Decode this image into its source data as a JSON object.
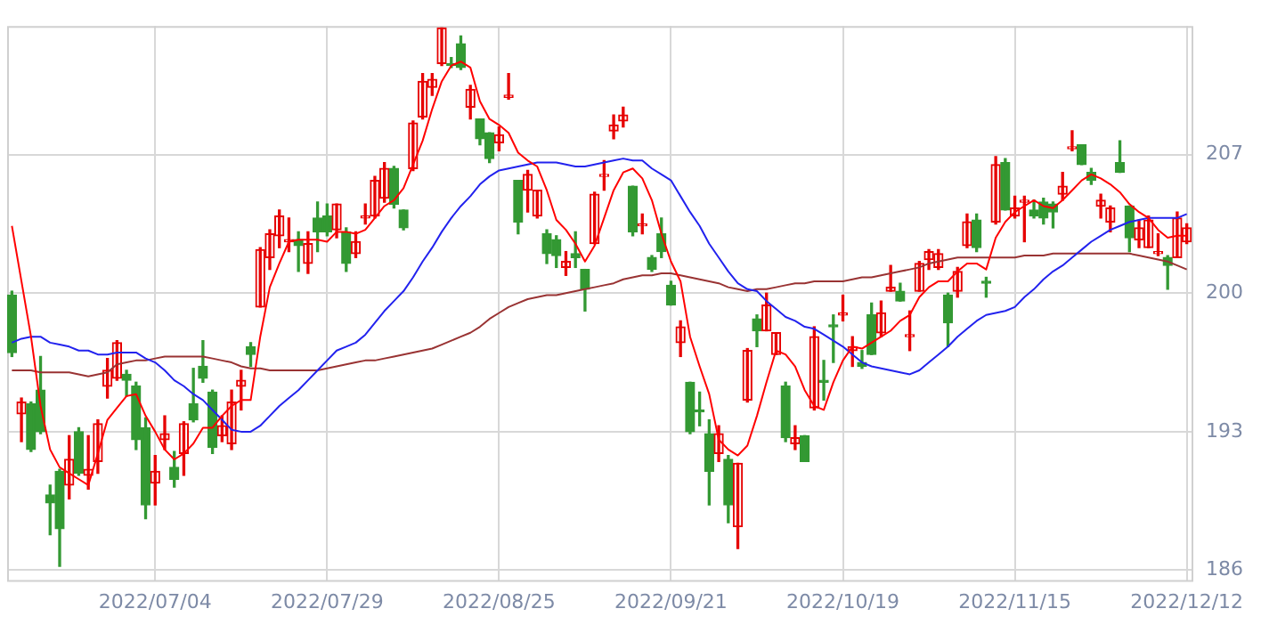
{
  "chart_data": {
    "type": "candlestick",
    "categories": [
      null,
      null,
      null,
      null,
      null,
      null,
      null,
      null,
      null,
      null,
      null,
      null,
      null,
      null,
      null,
      "2022/07/04",
      null,
      null,
      null,
      null,
      null,
      null,
      null,
      null,
      null,
      null,
      null,
      null,
      null,
      null,
      null,
      null,
      null,
      "2022/07/29",
      null,
      null,
      null,
      null,
      null,
      null,
      null,
      null,
      null,
      null,
      null,
      null,
      null,
      null,
      null,
      null,
      null,
      "2022/08/25",
      null,
      null,
      null,
      null,
      null,
      null,
      null,
      null,
      null,
      null,
      null,
      null,
      null,
      null,
      null,
      null,
      null,
      "2022/09/21",
      null,
      null,
      null,
      null,
      null,
      null,
      null,
      null,
      null,
      null,
      null,
      null,
      null,
      null,
      null,
      null,
      null,
      "2022/10/19",
      null,
      null,
      null,
      null,
      null,
      null,
      null,
      null,
      null,
      null,
      null,
      null,
      null,
      null,
      null,
      null,
      null,
      "2022/11/15",
      null,
      null,
      null,
      null,
      null,
      null,
      null,
      null,
      null,
      null,
      null,
      null,
      null,
      null,
      null,
      null,
      null,
      "2022/12/12"
    ],
    "ohlc": [
      [
        199.9,
        200.1,
        196.8,
        197.0
      ],
      [
        193.9,
        194.7,
        192.5,
        194.5
      ],
      [
        194.4,
        194.5,
        192.0,
        192.1
      ],
      [
        195.1,
        196.8,
        192.9,
        193.0
      ],
      [
        189.8,
        190.3,
        187.8,
        189.4
      ],
      [
        191.0,
        191.1,
        186.2,
        188.1
      ],
      [
        190.3,
        192.8,
        189.6,
        191.6
      ],
      [
        193.0,
        193.2,
        190.8,
        190.9
      ],
      [
        190.8,
        192.8,
        190.1,
        191.1
      ],
      [
        191.5,
        193.6,
        190.9,
        193.4
      ],
      [
        195.3,
        196.7,
        194.7,
        196.1
      ],
      [
        195.7,
        197.6,
        195.6,
        197.5
      ],
      [
        195.9,
        196.1,
        194.8,
        195.6
      ],
      [
        195.3,
        195.5,
        192.1,
        192.6
      ],
      [
        193.2,
        193.7,
        188.6,
        189.3
      ],
      [
        190.4,
        191.8,
        189.3,
        191.0
      ],
      [
        192.6,
        193.8,
        192.1,
        192.9
      ],
      [
        191.2,
        192.0,
        190.2,
        190.6
      ],
      [
        191.9,
        193.5,
        190.8,
        193.4
      ],
      [
        194.4,
        196.2,
        193.5,
        193.6
      ],
      [
        196.3,
        197.6,
        195.5,
        195.7
      ],
      [
        195.0,
        195.1,
        191.9,
        192.2
      ],
      [
        192.8,
        193.8,
        192.5,
        193.3
      ],
      [
        192.4,
        195.1,
        192.1,
        194.5
      ],
      [
        195.3,
        196.1,
        194.1,
        195.6
      ],
      [
        197.3,
        197.5,
        196.3,
        196.9
      ],
      [
        199.3,
        202.3,
        199.3,
        202.2
      ],
      [
        201.8,
        203.2,
        201.2,
        203.0
      ],
      [
        202.9,
        204.2,
        202.3,
        203.9
      ],
      [
        202.6,
        203.8,
        202.1,
        202.7
      ],
      [
        202.7,
        203.1,
        201.1,
        202.4
      ],
      [
        201.5,
        203.1,
        201.0,
        202.5
      ],
      [
        203.8,
        204.6,
        202.1,
        203.1
      ],
      [
        203.9,
        204.5,
        202.9,
        203.1
      ],
      [
        203.2,
        204.5,
        202.8,
        204.5
      ],
      [
        203.1,
        203.3,
        201.1,
        201.5
      ],
      [
        202.0,
        203.1,
        201.8,
        202.6
      ],
      [
        203.8,
        204.5,
        203.5,
        203.9
      ],
      [
        203.9,
        205.9,
        203.8,
        205.7
      ],
      [
        204.8,
        206.6,
        204.6,
        206.3
      ],
      [
        206.3,
        206.4,
        204.3,
        204.5
      ],
      [
        204.2,
        204.2,
        203.2,
        203.3
      ],
      [
        206.3,
        208.7,
        206.2,
        208.6
      ],
      [
        208.9,
        211.1,
        208.8,
        210.7
      ],
      [
        210.4,
        211.1,
        210.0,
        210.8
      ],
      [
        211.6,
        213.4,
        211.5,
        213.4
      ],
      [
        211.6,
        211.9,
        211.4,
        211.5
      ],
      [
        212.6,
        213.0,
        211.3,
        211.4
      ],
      [
        209.4,
        210.5,
        208.8,
        210.3
      ],
      [
        208.8,
        208.8,
        207.5,
        207.8
      ],
      [
        208.1,
        208.1,
        206.6,
        206.8
      ],
      [
        207.6,
        208.4,
        207.2,
        208.0
      ],
      [
        209.9,
        211.1,
        209.8,
        210.0
      ],
      [
        205.7,
        205.7,
        203.0,
        203.6
      ],
      [
        205.2,
        206.2,
        204.1,
        206.0
      ],
      [
        203.9,
        205.2,
        203.8,
        205.2
      ],
      [
        203.0,
        203.2,
        201.5,
        202.0
      ],
      [
        202.7,
        202.9,
        201.3,
        201.9
      ],
      [
        201.3,
        202.1,
        200.9,
        201.6
      ],
      [
        202.0,
        203.1,
        201.3,
        201.8
      ],
      [
        201.2,
        201.2,
        199.1,
        200.2
      ],
      [
        202.5,
        205.1,
        202.5,
        205.0
      ],
      [
        205.9,
        206.7,
        205.2,
        206.0
      ],
      [
        208.2,
        209.0,
        207.8,
        208.5
      ],
      [
        208.7,
        209.4,
        208.4,
        209.0
      ],
      [
        205.4,
        205.4,
        202.9,
        203.1
      ],
      [
        203.4,
        204.0,
        203.0,
        203.5
      ],
      [
        201.8,
        201.9,
        201.1,
        201.2
      ],
      [
        203.0,
        203.8,
        201.8,
        202.1
      ],
      [
        200.4,
        200.6,
        199.4,
        199.4
      ],
      [
        197.5,
        198.6,
        196.8,
        198.3
      ],
      [
        195.5,
        195.5,
        192.9,
        193.0
      ],
      [
        194.1,
        195.0,
        193.3,
        194.0
      ],
      [
        192.9,
        193.6,
        189.3,
        191.0
      ],
      [
        191.9,
        193.3,
        191.5,
        192.9
      ],
      [
        191.6,
        191.8,
        188.4,
        189.3
      ],
      [
        188.2,
        191.4,
        187.1,
        191.4
      ],
      [
        194.6,
        197.2,
        194.5,
        197.1
      ],
      [
        198.7,
        198.9,
        197.3,
        198.1
      ],
      [
        198.1,
        200.0,
        198.1,
        199.4
      ],
      [
        196.9,
        198.0,
        196.9,
        198.0
      ],
      [
        195.3,
        195.5,
        192.5,
        192.7
      ],
      [
        192.4,
        193.3,
        192.1,
        192.7
      ],
      [
        192.8,
        192.8,
        191.5,
        191.5
      ],
      [
        194.2,
        198.3,
        194.1,
        197.8
      ],
      [
        195.6,
        196.6,
        194.6,
        195.5
      ],
      [
        198.4,
        198.9,
        196.5,
        198.3
      ],
      [
        198.9,
        199.9,
        198.6,
        199.0
      ],
      [
        197.1,
        197.8,
        196.3,
        197.3
      ],
      [
        196.5,
        197.1,
        196.2,
        196.3
      ],
      [
        198.9,
        199.5,
        196.9,
        196.9
      ],
      [
        198.0,
        199.6,
        197.8,
        199.0
      ],
      [
        200.1,
        201.4,
        200.1,
        200.3
      ],
      [
        200.1,
        200.5,
        199.6,
        199.6
      ],
      [
        197.8,
        199.1,
        197.1,
        197.9
      ],
      [
        200.1,
        201.6,
        200.1,
        201.5
      ],
      [
        201.7,
        202.2,
        201.2,
        202.1
      ],
      [
        201.3,
        202.2,
        201.2,
        202.0
      ],
      [
        199.9,
        200.0,
        197.3,
        198.5
      ],
      [
        200.1,
        201.3,
        199.8,
        201.1
      ],
      [
        202.4,
        204.0,
        202.3,
        203.6
      ],
      [
        203.7,
        204.0,
        202.1,
        202.3
      ],
      [
        200.6,
        200.8,
        199.8,
        200.5
      ],
      [
        203.6,
        206.9,
        203.5,
        206.5
      ],
      [
        206.6,
        206.8,
        204.2,
        204.2
      ],
      [
        203.9,
        204.9,
        203.8,
        204.3
      ],
      [
        204.6,
        204.9,
        202.6,
        204.7
      ],
      [
        204.2,
        204.7,
        203.8,
        203.9
      ],
      [
        204.6,
        204.8,
        203.5,
        203.8
      ],
      [
        204.5,
        204.6,
        203.3,
        204.1
      ],
      [
        205.0,
        206.1,
        204.7,
        205.4
      ],
      [
        207.3,
        208.2,
        207.2,
        207.4
      ],
      [
        207.5,
        207.5,
        206.5,
        206.5
      ],
      [
        206.1,
        206.3,
        205.5,
        205.7
      ],
      [
        204.4,
        205.0,
        203.8,
        204.7
      ],
      [
        203.6,
        204.4,
        203.1,
        204.3
      ],
      [
        206.6,
        207.7,
        206.1,
        206.1
      ],
      [
        204.4,
        204.4,
        202.1,
        202.8
      ],
      [
        202.7,
        203.7,
        202.3,
        203.3
      ],
      [
        202.3,
        203.9,
        202.3,
        203.7
      ],
      [
        202.0,
        203.0,
        201.9,
        202.1
      ],
      [
        201.8,
        201.9,
        200.2,
        201.4
      ],
      [
        201.8,
        204.1,
        201.8,
        203.8
      ],
      [
        202.6,
        203.5,
        202.5,
        203.3
      ]
    ],
    "colors": [
      "#339933",
      "#e60000",
      "#339933",
      "#339933",
      "#339933",
      "#339933",
      "#e60000",
      "#339933",
      "#e60000",
      "#e60000",
      "#e60000",
      "#e60000",
      "#339933",
      "#339933",
      "#339933",
      "#e60000",
      "#e60000",
      "#339933",
      "#e60000",
      "#339933",
      "#339933",
      "#339933",
      "#e60000",
      "#e60000",
      "#e60000",
      "#339933",
      "#e60000",
      "#e60000",
      "#e60000",
      "#e60000",
      "#339933",
      "#e60000",
      "#339933",
      "#339933",
      "#e60000",
      "#339933",
      "#e60000",
      "#e60000",
      "#e60000",
      "#e60000",
      "#339933",
      "#339933",
      "#e60000",
      "#e60000",
      "#e60000",
      "#e60000",
      "#339933",
      "#339933",
      "#e60000",
      "#339933",
      "#339933",
      "#e60000",
      "#e60000",
      "#339933",
      "#e60000",
      "#e60000",
      "#339933",
      "#339933",
      "#e60000",
      "#339933",
      "#339933",
      "#e60000",
      "#e60000",
      "#e60000",
      "#e60000",
      "#339933",
      "#e60000",
      "#339933",
      "#339933",
      "#339933",
      "#e60000",
      "#339933",
      "#339933",
      "#339933",
      "#e60000",
      "#339933",
      "#e60000",
      "#e60000",
      "#339933",
      "#e60000",
      "#e60000",
      "#339933",
      "#e60000",
      "#339933",
      "#e60000",
      "#339933",
      "#339933",
      "#e60000",
      "#e60000",
      "#339933",
      "#339933",
      "#e60000",
      "#e60000",
      "#339933",
      "#e60000",
      "#e60000",
      "#e60000",
      "#e60000",
      "#339933",
      "#e60000",
      "#e60000",
      "#339933",
      "#339933",
      "#e60000",
      "#339933",
      "#e60000",
      "#e60000",
      "#339933",
      "#339933",
      "#339933",
      "#e60000",
      "#e60000",
      "#339933",
      "#339933",
      "#e60000",
      "#e60000",
      "#339933",
      "#339933",
      "#e60000",
      "#e60000",
      "#e60000",
      "#339933",
      "#e60000",
      "#e60000"
    ],
    "series": [
      {
        "type": "line",
        "color": "#ff0000",
        "values": [
          203.4,
          200.6,
          197.8,
          194.3,
          192.1,
          191.2,
          190.9,
          190.6,
          190.3,
          191.9,
          193.6,
          194.2,
          194.8,
          194.9,
          193.8,
          193.0,
          192.1,
          191.6,
          191.9,
          192.4,
          193.2,
          193.2,
          193.8,
          194.3,
          194.6,
          194.6,
          197.8,
          200.3,
          201.5,
          202.6,
          202.7,
          202.7,
          202.7,
          202.6,
          203.1,
          203.1,
          203.0,
          203.2,
          203.8,
          204.4,
          204.7,
          205.3,
          206.5,
          207.7,
          209.3,
          210.7,
          211.5,
          211.7,
          211.4,
          209.7,
          208.8,
          208.5,
          208.1,
          207.1,
          206.7,
          206.4,
          205.2,
          203.7,
          203.2,
          202.5,
          201.6,
          202.4,
          203.8,
          205.2,
          206.1,
          206.3,
          205.8,
          204.7,
          203.0,
          201.6,
          200.6,
          197.8,
          196.3,
          194.9,
          192.6,
          192.1,
          191.8,
          192.3,
          193.8,
          195.5,
          197.1,
          196.9,
          196.3,
          195.1,
          194.3,
          194.1,
          195.5,
          196.6,
          197.3,
          197.2,
          197.5,
          197.8,
          198.1,
          198.6,
          198.9,
          199.8,
          200.3,
          200.6,
          200.6,
          201.1,
          201.5,
          201.5,
          201.2,
          202.8,
          203.6,
          204.1,
          204.4,
          204.7,
          204.4,
          204.3,
          204.7,
          205.2,
          205.7,
          206.0,
          205.8,
          205.5,
          205.1,
          204.5,
          204.1,
          203.8,
          203.2,
          202.8,
          202.9,
          202.9
        ]
      },
      {
        "type": "line",
        "color": "#2222ee",
        "values": [
          197.5,
          197.7,
          197.8,
          197.8,
          197.5,
          197.4,
          197.3,
          197.1,
          197.1,
          196.9,
          196.9,
          197.0,
          197.0,
          197.0,
          196.7,
          196.5,
          196.1,
          195.6,
          195.3,
          194.9,
          194.6,
          194.1,
          193.6,
          193.1,
          193.0,
          193.0,
          193.3,
          193.8,
          194.3,
          194.7,
          195.1,
          195.6,
          196.1,
          196.6,
          197.1,
          197.3,
          197.5,
          197.9,
          198.5,
          199.1,
          199.6,
          200.1,
          200.8,
          201.6,
          202.3,
          203.1,
          203.8,
          204.4,
          204.9,
          205.5,
          205.9,
          206.2,
          206.3,
          206.4,
          206.5,
          206.6,
          206.6,
          206.6,
          206.5,
          206.4,
          206.4,
          206.5,
          206.6,
          206.7,
          206.8,
          206.7,
          206.7,
          206.3,
          206.0,
          205.7,
          204.9,
          204.1,
          203.4,
          202.5,
          201.8,
          201.1,
          200.5,
          200.2,
          200.1,
          199.6,
          199.2,
          198.8,
          198.6,
          198.3,
          198.2,
          197.9,
          197.6,
          197.3,
          196.9,
          196.5,
          196.3,
          196.2,
          196.1,
          196.0,
          195.9,
          196.1,
          196.5,
          196.9,
          197.3,
          197.8,
          198.2,
          198.6,
          198.9,
          199.0,
          199.1,
          199.3,
          199.8,
          200.2,
          200.7,
          201.1,
          201.4,
          201.8,
          202.2,
          202.6,
          202.9,
          203.2,
          203.4,
          203.6,
          203.7,
          203.8,
          203.8,
          203.8,
          203.8,
          204.0
        ]
      },
      {
        "type": "line",
        "color": "#993333",
        "values": [
          196.1,
          196.1,
          196.1,
          196.0,
          196.0,
          196.0,
          196.0,
          195.9,
          195.8,
          195.9,
          196.0,
          196.4,
          196.5,
          196.6,
          196.6,
          196.7,
          196.8,
          196.8,
          196.8,
          196.8,
          196.8,
          196.7,
          196.6,
          196.5,
          196.3,
          196.2,
          196.2,
          196.1,
          196.1,
          196.1,
          196.1,
          196.1,
          196.1,
          196.2,
          196.3,
          196.4,
          196.5,
          196.6,
          196.6,
          196.7,
          196.8,
          196.9,
          197.0,
          197.1,
          197.2,
          197.4,
          197.6,
          197.8,
          198.0,
          198.3,
          198.7,
          199.0,
          199.3,
          199.5,
          199.7,
          199.8,
          199.9,
          199.9,
          200.0,
          200.1,
          200.2,
          200.3,
          200.4,
          200.5,
          200.7,
          200.8,
          200.9,
          200.9,
          201.0,
          201.0,
          200.9,
          200.8,
          200.7,
          200.6,
          200.5,
          200.3,
          200.2,
          200.1,
          200.2,
          200.2,
          200.3,
          200.4,
          200.5,
          200.5,
          200.6,
          200.6,
          200.6,
          200.6,
          200.7,
          200.8,
          200.8,
          200.9,
          201.0,
          201.1,
          201.2,
          201.3,
          201.5,
          201.6,
          201.7,
          201.8,
          201.8,
          201.8,
          201.8,
          201.8,
          201.8,
          201.8,
          201.9,
          201.9,
          201.9,
          202.0,
          202.0,
          202.0,
          202.0,
          202.0,
          202.0,
          202.0,
          202.0,
          202.0,
          201.9,
          201.8,
          201.7,
          201.6,
          201.4,
          201.2
        ]
      }
    ],
    "ylim": [
      185.5,
      213.5
    ],
    "yticks": [
      186,
      193,
      200,
      207
    ],
    "grid": true
  }
}
